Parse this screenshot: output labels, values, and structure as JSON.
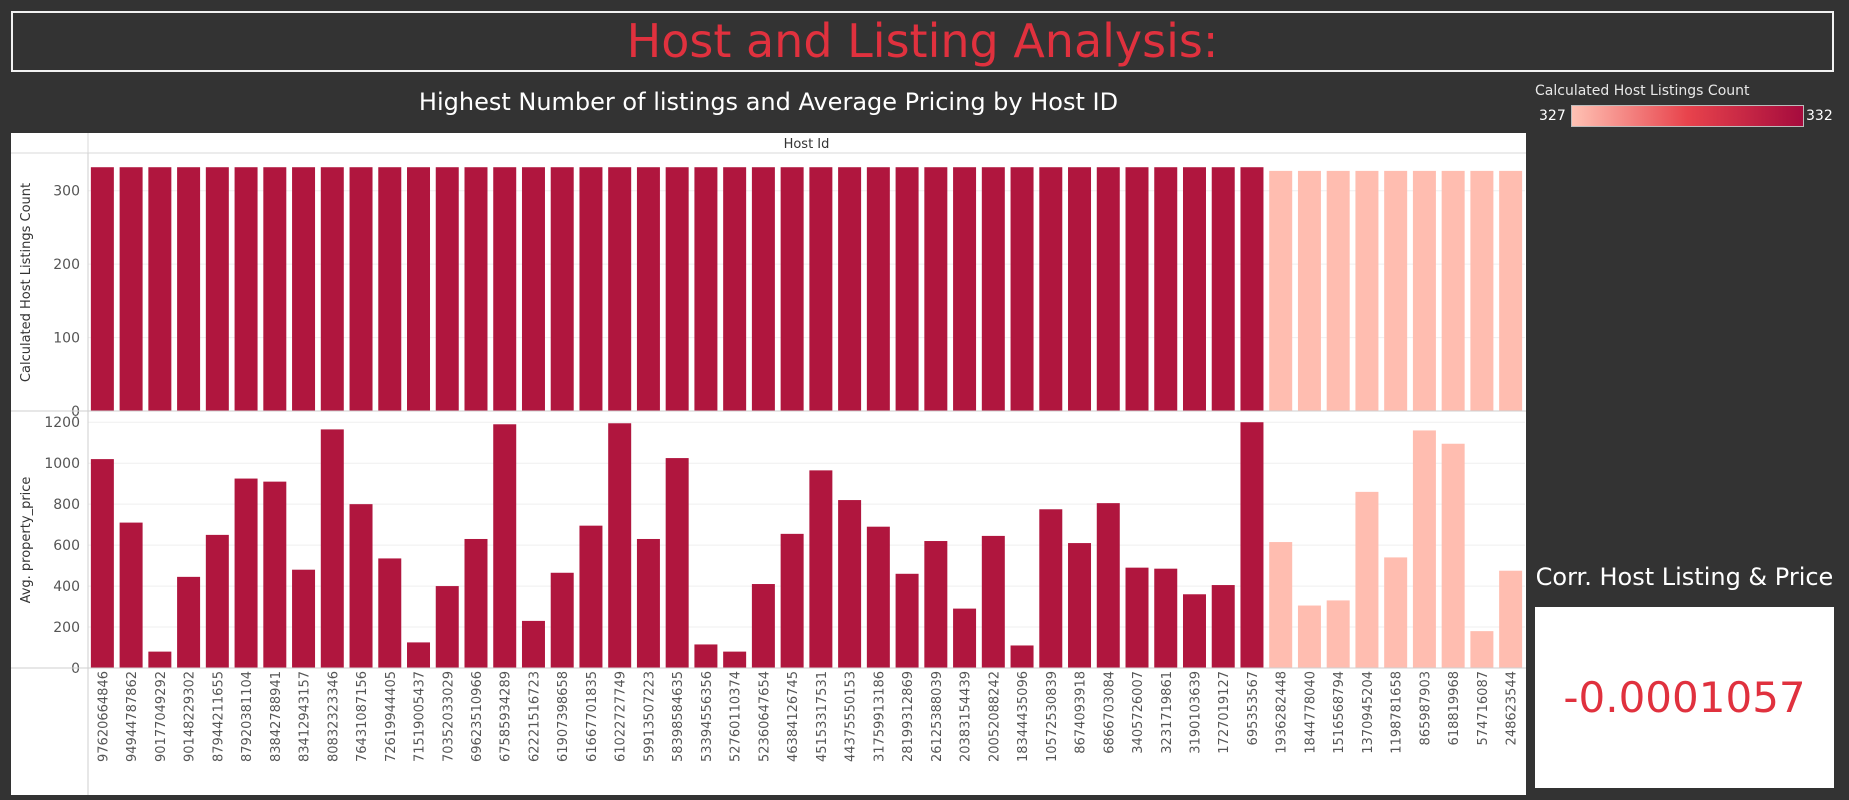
{
  "dashboard_title": "Host and Listing Analysis:",
  "chart_title": "Highest Number of listings and Average Pricing by Host ID",
  "legend": {
    "title": "Calculated Host Listings Count",
    "min": "327",
    "max": "332",
    "color_low": "#ffc2b4",
    "color_high": "#a50b3d"
  },
  "corr": {
    "title": "Corr. Host Listing & Price",
    "value": "-0.0001057"
  },
  "colors": {
    "background": "#333333",
    "accent": "#e0313e",
    "bar_high": "#b0163e",
    "bar_low": "#ffbdb0"
  },
  "chart_data": {
    "type": "bar",
    "header": "Host Id",
    "categories": [
      "97620664846",
      "94944787862",
      "90177049292",
      "90148229302",
      "87944211655",
      "87920381104",
      "83842788941",
      "83412943157",
      "80832323346",
      "76431087156",
      "72619944405",
      "71519005437",
      "70352033029",
      "69623510966",
      "67585934289",
      "62221516723",
      "61907398658",
      "61667701835",
      "61022727749",
      "59913507223",
      "58398584635",
      "53394556356",
      "52760110374",
      "52360647654",
      "46384126745",
      "45153317531",
      "44375550153",
      "31759913186",
      "28199312869",
      "26125388039",
      "20383154439",
      "20052088242",
      "18344435096",
      "10572530839",
      "8674093918",
      "6866703084",
      "3405726007",
      "3231719861",
      "3190103639",
      "1727019127",
      "695353567",
      "1936282448",
      "1844778040",
      "1516568794",
      "1370945204",
      "1198781658",
      "865987903",
      "618819968",
      "574716087",
      "248623544"
    ],
    "series": [
      {
        "name": "Calculated Host Listings Count",
        "ylabel": "Calculated Host Listings Count",
        "ylim": [
          0,
          350
        ],
        "ticks": [
          0,
          100,
          200,
          300
        ],
        "values": [
          332,
          332,
          332,
          332,
          332,
          332,
          332,
          332,
          332,
          332,
          332,
          332,
          332,
          332,
          332,
          332,
          332,
          332,
          332,
          332,
          332,
          332,
          332,
          332,
          332,
          332,
          332,
          332,
          332,
          332,
          332,
          332,
          332,
          332,
          332,
          332,
          332,
          332,
          332,
          332,
          332,
          327,
          327,
          327,
          327,
          327,
          327,
          327,
          327,
          327
        ]
      },
      {
        "name": "Avg. property_price",
        "ylabel": "Avg. property_price",
        "ylim": [
          0,
          1250
        ],
        "ticks": [
          0,
          200,
          400,
          600,
          800,
          1000,
          1200
        ],
        "values": [
          1020,
          710,
          80,
          445,
          650,
          925,
          910,
          480,
          1165,
          800,
          535,
          125,
          400,
          630,
          1190,
          230,
          465,
          695,
          1195,
          630,
          1025,
          115,
          80,
          410,
          655,
          965,
          820,
          690,
          460,
          620,
          290,
          645,
          110,
          775,
          610,
          805,
          490,
          485,
          360,
          405,
          1200,
          615,
          305,
          330,
          860,
          540,
          1160,
          1095,
          180,
          475
        ]
      }
    ]
  }
}
